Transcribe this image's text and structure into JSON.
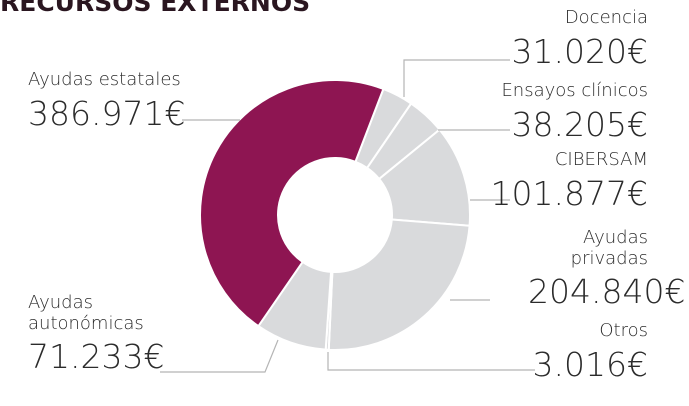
{
  "chart_data": {
    "type": "donut",
    "title": "RECURSOS EXTERNOS",
    "categories": [
      "Docencia",
      "Ensayos clínicos",
      "CIBERSAM",
      "Ayudas privadas",
      "Otros",
      "Ayudas autonómicas",
      "Ayudas estatales"
    ],
    "values": [
      31020,
      38205,
      101877,
      204840,
      3016,
      71233,
      386971
    ],
    "value_labels": [
      "31.020€",
      "38.205€",
      "101.877€",
      "204.840€",
      "3.016€",
      "71.233€",
      "386.971€"
    ],
    "colors": [
      "#d9dadc",
      "#d9dadc",
      "#d9dadc",
      "#d9dadc",
      "#d9dadc",
      "#d9dadc",
      "#8e1552"
    ]
  }
}
